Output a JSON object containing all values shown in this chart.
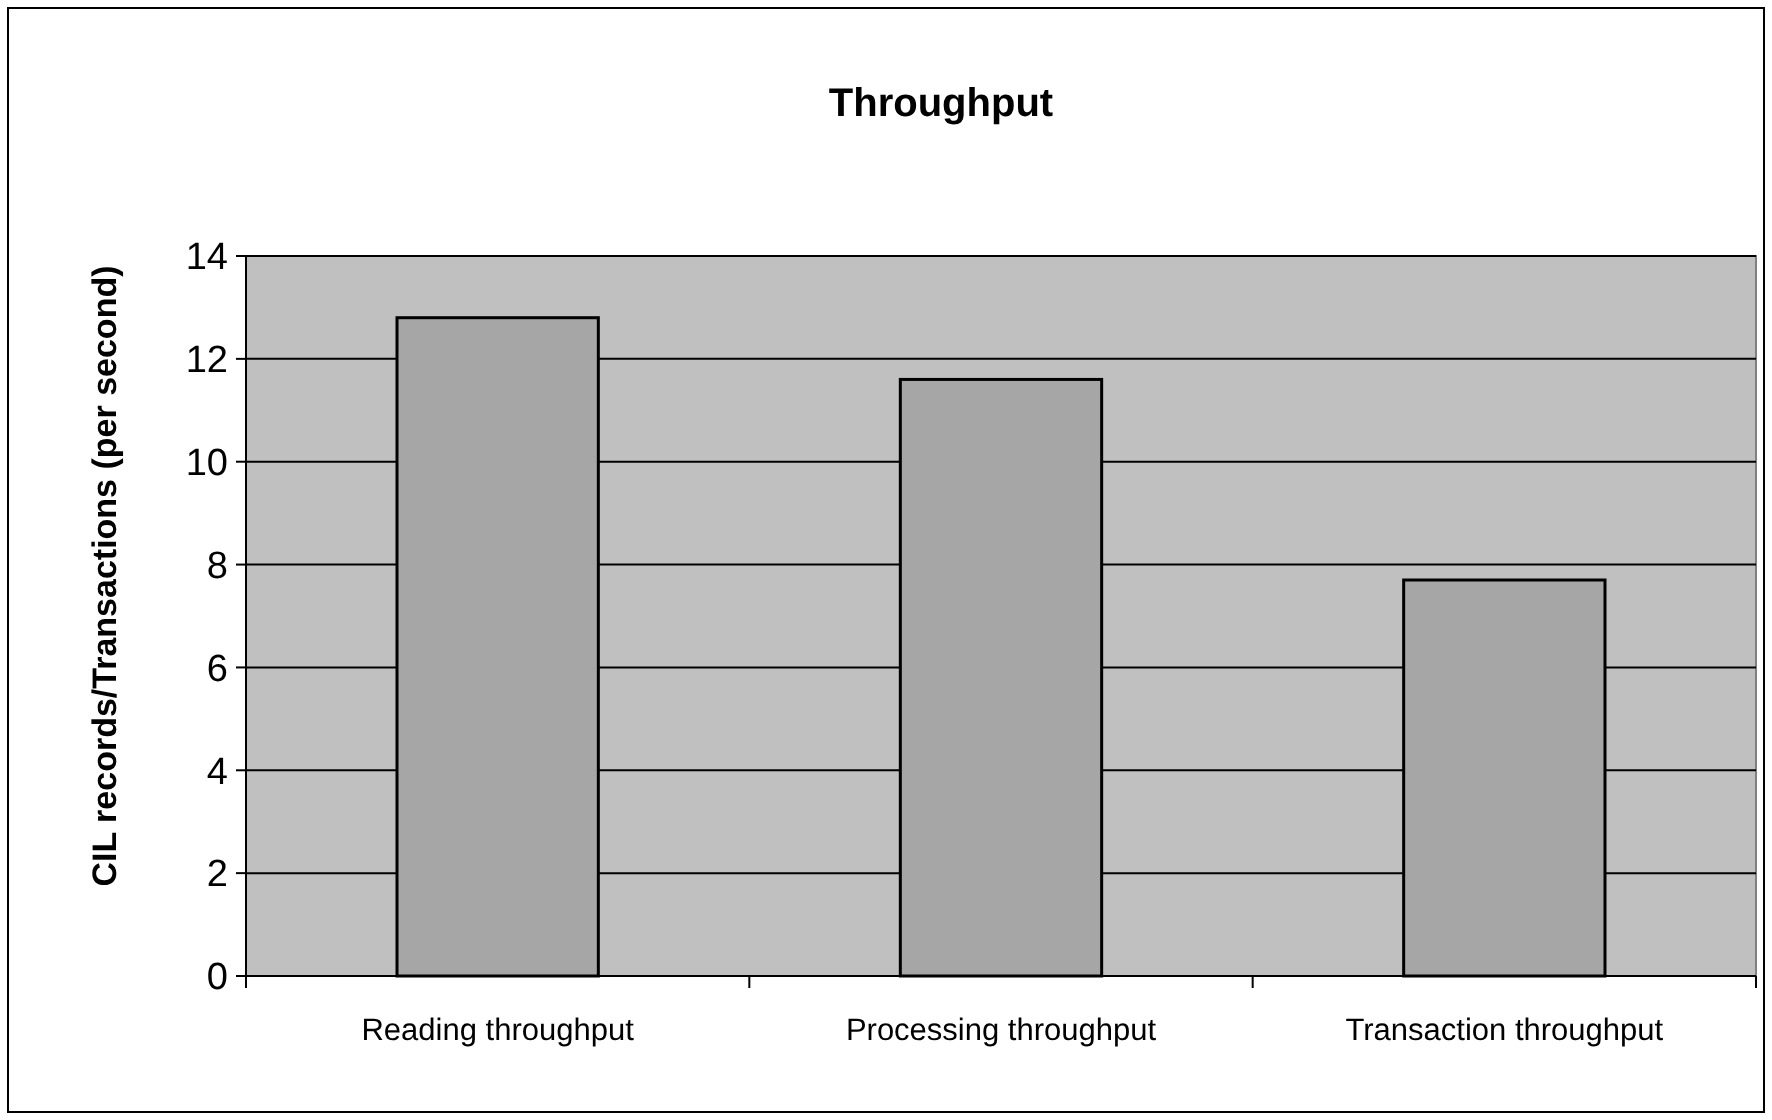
{
  "chart_data": {
    "type": "bar",
    "title": "Throughput",
    "ylabel": "CIL records/Transactions (per second)",
    "categories": [
      "Reading throughput",
      "Processing throughput",
      "Transaction throughput"
    ],
    "values": [
      12.8,
      11.6,
      7.7
    ],
    "color": "#a6a6a6",
    "ylim": [
      0,
      14
    ],
    "yticks": [
      0,
      2,
      4,
      6,
      8,
      10,
      12,
      14
    ],
    "grid": "y"
  }
}
